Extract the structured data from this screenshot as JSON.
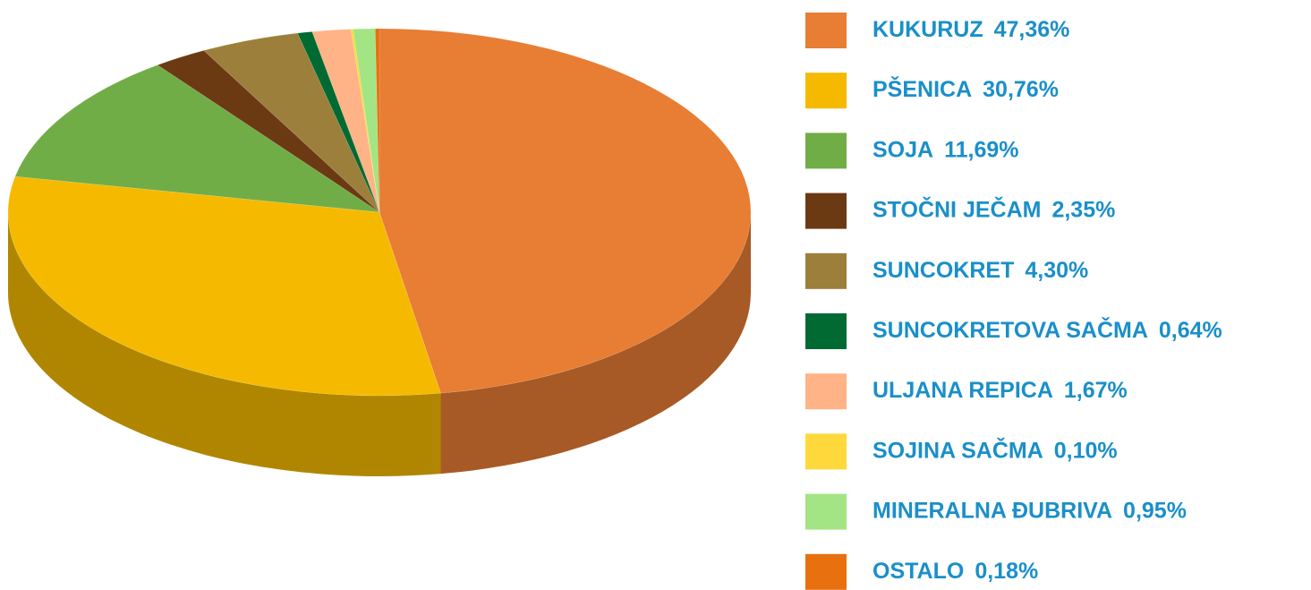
{
  "chart_data": {
    "type": "pie",
    "categories": [
      "KUKURUZ",
      "PŠENICA",
      "SOJA",
      "STOČNI JEČAM",
      "SUNCOKRET",
      "SUNCOKRETOVA SAČMA",
      "ULJANA REPICA",
      "SOJINA SAČMA",
      "MINERALNA ĐUBRIVA",
      "OSTALO"
    ],
    "values": [
      47.36,
      30.76,
      11.69,
      2.35,
      4.3,
      0.64,
      1.67,
      0.1,
      0.95,
      0.18
    ],
    "value_labels": [
      "47,36%",
      "30,76%",
      "11,69%",
      "2,35%",
      "4,30%",
      "0,64%",
      "1,67%",
      "0,10%",
      "0,95%",
      "0,18%"
    ],
    "colors": [
      "#e87d34",
      "#f5ba00",
      "#70ad47",
      "#6b3a13",
      "#9c7f3a",
      "#006a32",
      "#ffb386",
      "#ffd93b",
      "#a3e584",
      "#e8700f"
    ],
    "legend": "right"
  }
}
